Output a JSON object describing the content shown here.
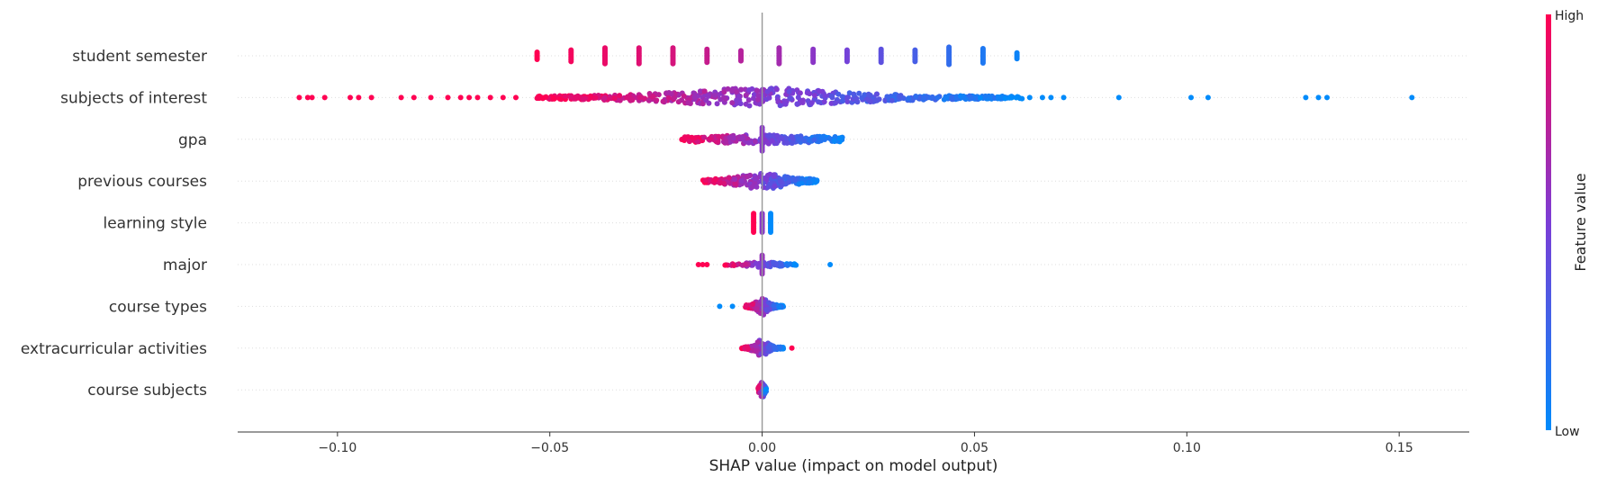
{
  "chart_data": {
    "type": "scatter",
    "subtype": "shap-beeswarm",
    "xlabel": "SHAP value (impact on model output)",
    "xlim": [
      -0.1235,
      0.1665
    ],
    "xticks": [
      -0.1,
      -0.05,
      0.0,
      0.05,
      0.1,
      0.15
    ],
    "xtick_labels": [
      "−0.10",
      "−0.05",
      "0.00",
      "0.05",
      "0.10",
      "0.15"
    ],
    "grid": "dotted horizontal row guides",
    "zero_line": true,
    "features": [
      "student semester",
      "subjects of interest",
      "gpa",
      "previous courses",
      "learning style",
      "major",
      "course types",
      "extracurricular activities",
      "course subjects"
    ],
    "colorbar": {
      "label": "Feature value",
      "high_label": "High",
      "low_label": "Low",
      "high_color": "#ff0052",
      "mid_color": "#7b3dd6",
      "low_color": "#008bfb"
    },
    "series": [
      {
        "feature": "student semester",
        "clusters": [
          {
            "x": -0.053,
            "f": 1.0,
            "n": 6
          },
          {
            "x": -0.045,
            "f": 0.96,
            "n": 9
          },
          {
            "x": -0.037,
            "f": 0.92,
            "n": 12
          },
          {
            "x": -0.029,
            "f": 0.88,
            "n": 12
          },
          {
            "x": -0.021,
            "f": 0.84,
            "n": 12
          },
          {
            "x": -0.013,
            "f": 0.78,
            "n": 10
          },
          {
            "x": -0.005,
            "f": 0.72,
            "n": 8
          },
          {
            "x": 0.004,
            "f": 0.65,
            "n": 12
          },
          {
            "x": 0.012,
            "f": 0.56,
            "n": 10
          },
          {
            "x": 0.02,
            "f": 0.47,
            "n": 9
          },
          {
            "x": 0.028,
            "f": 0.38,
            "n": 10
          },
          {
            "x": 0.036,
            "f": 0.29,
            "n": 9
          },
          {
            "x": 0.044,
            "f": 0.2,
            "n": 13
          },
          {
            "x": 0.052,
            "f": 0.12,
            "n": 11
          },
          {
            "x": 0.06,
            "f": 0.05,
            "n": 5
          }
        ],
        "points": [],
        "band": null
      },
      {
        "feature": "subjects of interest",
        "clusters": [],
        "points": [
          {
            "x": -0.109,
            "f": 1.0
          },
          {
            "x": -0.107,
            "f": 1.0
          },
          {
            "x": -0.106,
            "f": 1.0
          },
          {
            "x": -0.103,
            "f": 1.0
          },
          {
            "x": -0.097,
            "f": 1.0
          },
          {
            "x": -0.095,
            "f": 1.0
          },
          {
            "x": -0.092,
            "f": 1.0
          },
          {
            "x": -0.085,
            "f": 1.0
          },
          {
            "x": -0.082,
            "f": 1.0
          },
          {
            "x": -0.078,
            "f": 1.0
          },
          {
            "x": -0.074,
            "f": 1.0
          },
          {
            "x": -0.071,
            "f": 1.0
          },
          {
            "x": -0.069,
            "f": 1.0
          },
          {
            "x": -0.067,
            "f": 1.0
          },
          {
            "x": -0.064,
            "f": 1.0
          },
          {
            "x": -0.061,
            "f": 1.0
          },
          {
            "x": -0.058,
            "f": 1.0
          },
          {
            "x": 0.063,
            "f": 0.0
          },
          {
            "x": 0.066,
            "f": 0.0
          },
          {
            "x": 0.068,
            "f": 0.0
          },
          {
            "x": 0.071,
            "f": 0.0
          },
          {
            "x": 0.084,
            "f": 0.0
          },
          {
            "x": 0.101,
            "f": 0.0
          },
          {
            "x": 0.105,
            "f": 0.0
          },
          {
            "x": 0.128,
            "f": 0.0
          },
          {
            "x": 0.131,
            "f": 0.0
          },
          {
            "x": 0.133,
            "f": 0.0
          },
          {
            "x": 0.153,
            "f": 0.0
          }
        ],
        "band": {
          "xmin": -0.053,
          "xmax": 0.062,
          "center": 0.0,
          "width": 0.022,
          "hw": 11,
          "flo": 0.0,
          "fhi": 1.0,
          "n": 520
        }
      },
      {
        "feature": "gpa",
        "clusters": [],
        "points": [],
        "band": {
          "xmin": -0.019,
          "xmax": 0.019,
          "center": 0.0,
          "width": 0.02,
          "hw": 5,
          "flo": 0.0,
          "fhi": 1.0,
          "n": 220,
          "spine": true
        }
      },
      {
        "feature": "previous courses",
        "clusters": [],
        "points": [],
        "band": {
          "xmin": -0.014,
          "xmax": 0.013,
          "center": 0.0,
          "width": 0.007,
          "hw": 9,
          "flo": 0.0,
          "fhi": 1.0,
          "n": 220
        }
      },
      {
        "feature": "learning style",
        "clusters": [
          {
            "x": -0.002,
            "f": 1.0,
            "n": 14
          },
          {
            "x": 0.0,
            "f": 0.55,
            "n": 14
          },
          {
            "x": 0.002,
            "f": 0.0,
            "n": 14
          }
        ],
        "points": [],
        "band": null
      },
      {
        "feature": "major",
        "clusters": [
          {
            "x": 0.0,
            "f": 0.6,
            "n": 14
          }
        ],
        "points": [
          {
            "x": -0.015,
            "f": 1.0
          },
          {
            "x": -0.014,
            "f": 1.0
          },
          {
            "x": -0.013,
            "f": 1.0
          },
          {
            "x": 0.016,
            "f": 0.0
          }
        ],
        "band": {
          "xmin": -0.009,
          "xmax": 0.008,
          "center": 0.0,
          "width": 0.005,
          "hw": 3,
          "flo": 0.0,
          "fhi": 1.0,
          "n": 70
        }
      },
      {
        "feature": "course types",
        "clusters": [],
        "points": [
          {
            "x": -0.01,
            "f": 0.0
          },
          {
            "x": -0.007,
            "f": 0.0
          }
        ],
        "band": {
          "xmin": -0.004,
          "xmax": 0.005,
          "center": 0.0,
          "width": 0.0015,
          "hw": 10,
          "flo": 0.0,
          "fhi": 1.0,
          "n": 160
        }
      },
      {
        "feature": "extracurricular activities",
        "clusters": [],
        "points": [
          {
            "x": 0.007,
            "f": 1.0
          }
        ],
        "band": {
          "xmin": -0.005,
          "xmax": 0.005,
          "center": 0.0,
          "width": 0.0015,
          "hw": 10,
          "flo": 0.0,
          "fhi": 1.0,
          "n": 150
        }
      },
      {
        "feature": "course subjects",
        "clusters": [],
        "points": [],
        "band": {
          "xmin": -0.001,
          "xmax": 0.001,
          "center": 0.0,
          "width": 0.0006,
          "hw": 9,
          "flo": 0.0,
          "fhi": 1.0,
          "n": 70
        }
      }
    ]
  }
}
